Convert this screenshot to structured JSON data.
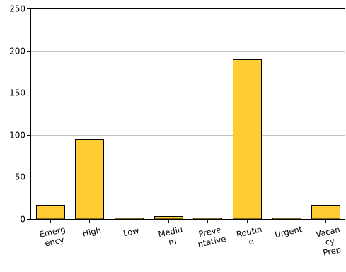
{
  "chart_data": {
    "type": "bar",
    "categories": [
      [
        "Emerg",
        "ency"
      ],
      [
        "High"
      ],
      [
        "Low"
      ],
      [
        "Mediu",
        "m"
      ],
      [
        "Preve",
        "ntative"
      ],
      [
        "Routin",
        "e"
      ],
      [
        "Urgent"
      ],
      [
        "Vacan",
        "cy",
        "Prep"
      ]
    ],
    "values": [
      17,
      95,
      2,
      3,
      2,
      190,
      2,
      17
    ],
    "ylim": [
      0,
      250
    ],
    "yticks": [
      0,
      50,
      100,
      150,
      200,
      250
    ],
    "title": "",
    "xlabel": "",
    "ylabel": "",
    "grid": "horizontal",
    "legend": "none",
    "colors": {
      "bar": "#ffcc33",
      "bar_stroke": "#000000",
      "grid": "#c0c0c0",
      "axis": "#000000"
    }
  }
}
